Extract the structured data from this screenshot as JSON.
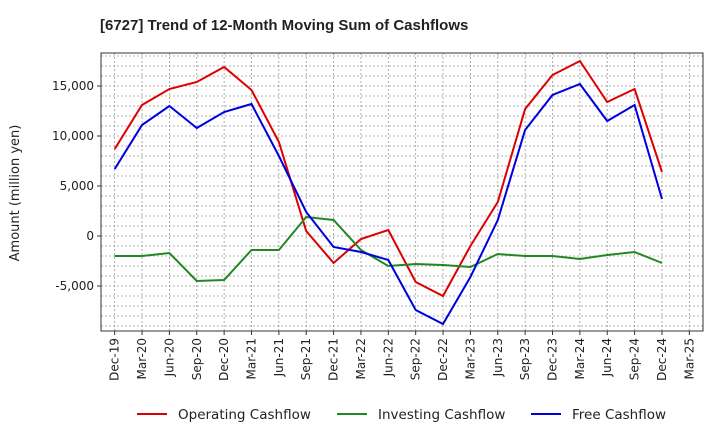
{
  "chart_data": {
    "type": "line",
    "title": "[6727]  Trend of 12-Month Moving Sum of Cashflows",
    "xlabel": "",
    "ylabel": "Amount (million yen)",
    "categories": [
      "Dec-19",
      "Mar-20",
      "Jun-20",
      "Sep-20",
      "Dec-20",
      "Mar-21",
      "Jun-21",
      "Sep-21",
      "Dec-21",
      "Mar-22",
      "Jun-22",
      "Sep-22",
      "Dec-22",
      "Mar-23",
      "Jun-23",
      "Sep-23",
      "Dec-23",
      "Mar-24",
      "Jun-24",
      "Sep-24",
      "Dec-24",
      "Mar-25"
    ],
    "ylim": [
      -9500,
      18300
    ],
    "yticks": [
      -5000,
      0,
      5000,
      10000,
      15000
    ],
    "ytick_labels": [
      "-5,000",
      "0",
      "5,000",
      "10,000",
      "15,000"
    ],
    "grid": true,
    "legend_position": "bottom",
    "series": [
      {
        "name": "Operating Cashflow",
        "color": "#dd0000",
        "values": [
          8700,
          13100,
          14700,
          15400,
          16900,
          14600,
          9400,
          500,
          -2700,
          -300,
          600,
          -4600,
          -6000,
          -1000,
          3400,
          12700,
          16100,
          17500,
          13400,
          14700,
          6400,
          null
        ]
      },
      {
        "name": "Investing Cashflow",
        "color": "#228822",
        "values": [
          -2000,
          -2000,
          -1700,
          -4500,
          -4400,
          -1400,
          -1400,
          1900,
          1600,
          -1400,
          -3000,
          -2800,
          -2900,
          -3100,
          -1800,
          -2000,
          -2000,
          -2300,
          -1900,
          -1600,
          -2700,
          null
        ]
      },
      {
        "name": "Free Cashflow",
        "color": "#0000dd",
        "values": [
          6700,
          11100,
          13000,
          10800,
          12400,
          13200,
          8000,
          2400,
          -1100,
          -1600,
          -2400,
          -7400,
          -8800,
          -4100,
          1600,
          10600,
          14100,
          15200,
          11500,
          13100,
          3700,
          null
        ]
      }
    ]
  }
}
